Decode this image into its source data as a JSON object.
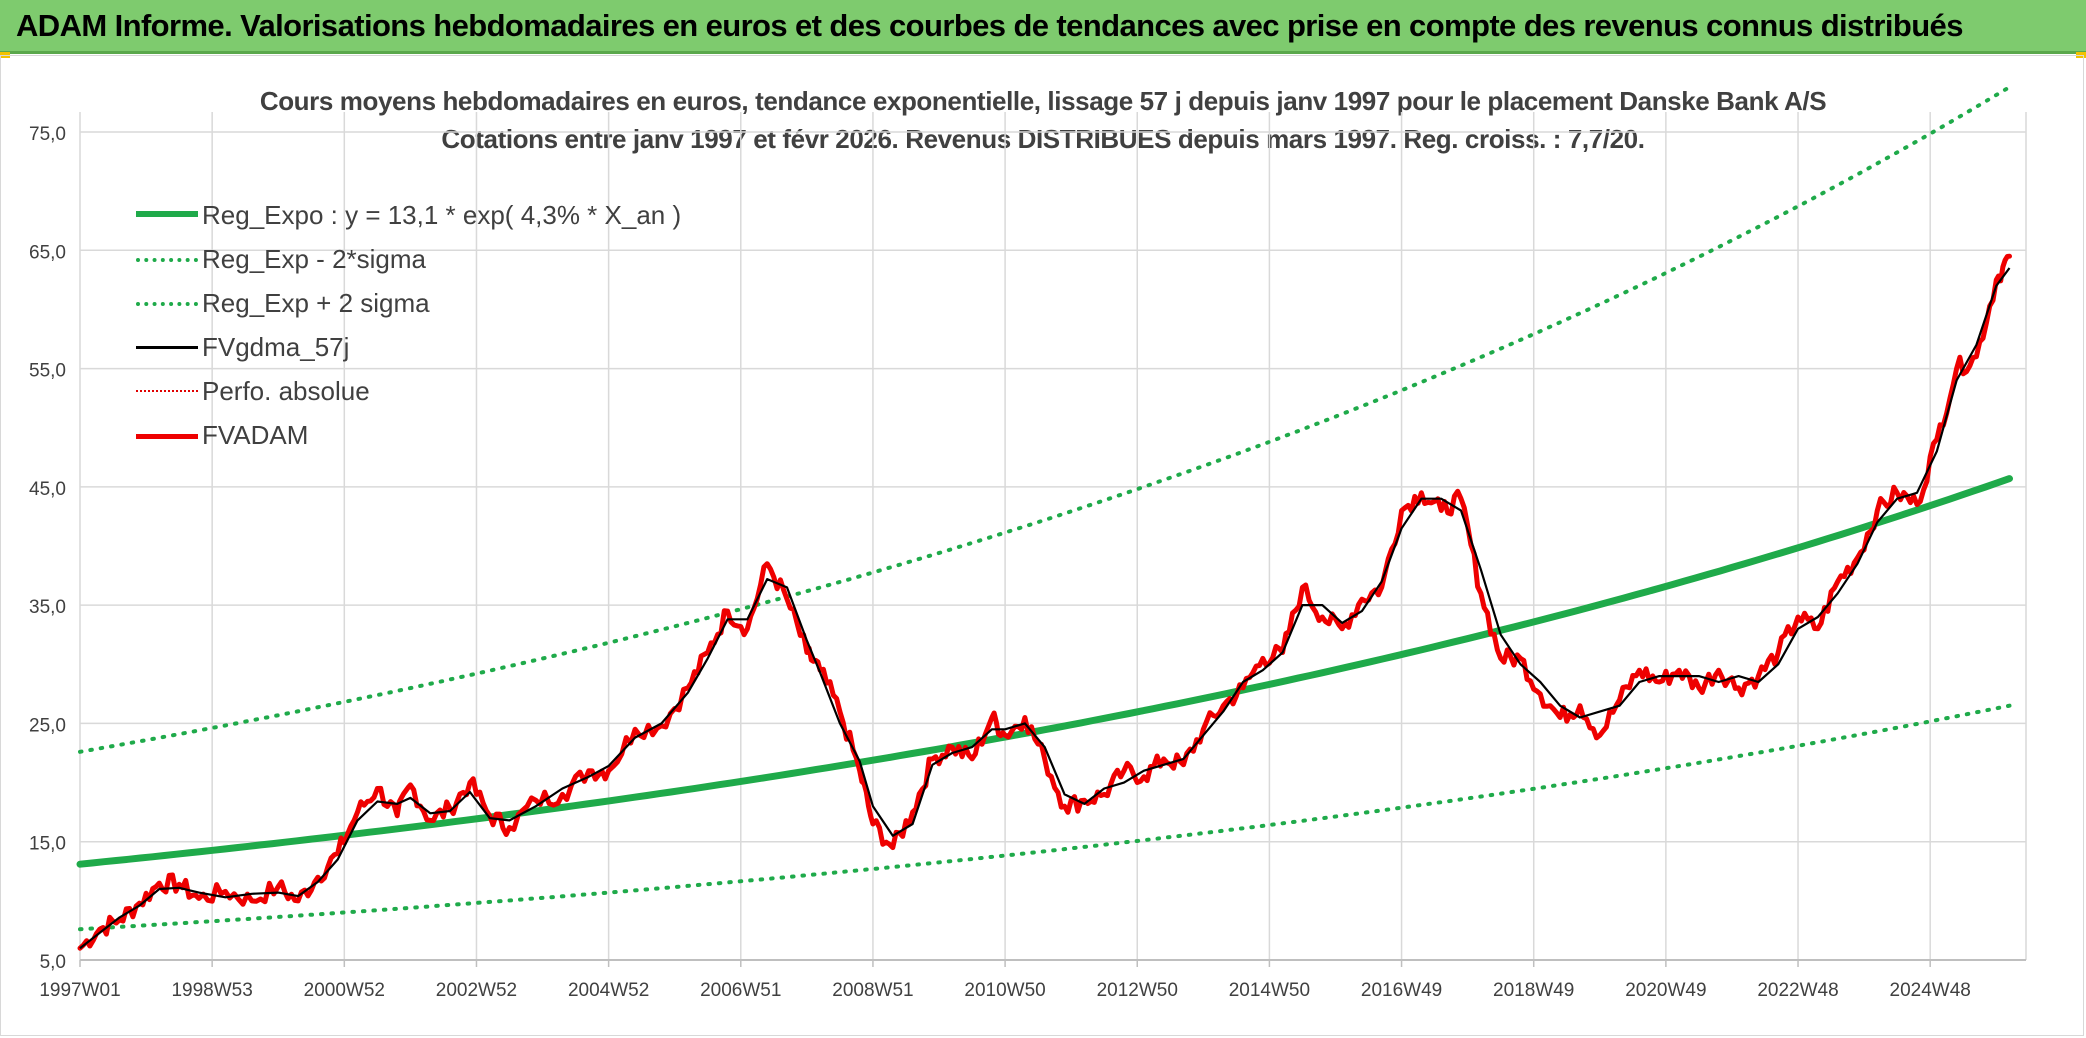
{
  "banner": {
    "title": "ADAM Informe. Valorisations hebdomadaires en euros et des courbes de tendances avec prise en compte des revenus connus distribués"
  },
  "colors": {
    "banner_bg": "#7ecb6e",
    "reg_expo": "#1faa4a",
    "band": "#1faa4a",
    "fvgdma": "#000000",
    "perfo": "#e00000",
    "fvadam": "#ee0000"
  },
  "chart_data": {
    "type": "line",
    "title": "Cours moyens hebdomadaires en euros, tendance exponentielle, lissage 57 j depuis janv 1997 pour le placement Danske Bank A/S",
    "subtitle": "Cotations entre janv 1997 et févr 2026. Revenus DISTRIBUES depuis mars 1997. Reg. croiss. : 7,7/20.",
    "xlabel": "",
    "ylabel": "",
    "ylim": [
      5,
      75
    ],
    "yticks": [
      "5,0",
      "15,0",
      "25,0",
      "35,0",
      "45,0",
      "55,0",
      "65,0",
      "75,0"
    ],
    "xlim": [
      1997.0,
      2026.2
    ],
    "xticks": [
      {
        "x": 1997.0,
        "label": "1997W01"
      },
      {
        "x": 1999.0,
        "label": "1998W53"
      },
      {
        "x": 2001.0,
        "label": "2000W52"
      },
      {
        "x": 2003.0,
        "label": "2002W52"
      },
      {
        "x": 2005.0,
        "label": "2004W52"
      },
      {
        "x": 2007.0,
        "label": "2006W51"
      },
      {
        "x": 2009.0,
        "label": "2008W51"
      },
      {
        "x": 2011.0,
        "label": "2010W50"
      },
      {
        "x": 2013.0,
        "label": "2012W50"
      },
      {
        "x": 2015.0,
        "label": "2014W50"
      },
      {
        "x": 2017.0,
        "label": "2016W49"
      },
      {
        "x": 2019.0,
        "label": "2018W49"
      },
      {
        "x": 2021.0,
        "label": "2020W49"
      },
      {
        "x": 2023.0,
        "label": "2022W48"
      },
      {
        "x": 2025.0,
        "label": "2024W48"
      }
    ],
    "grid": true,
    "legend_position": "top-left",
    "series": [
      {
        "name": "Reg_Expo : y = 13,1 * exp( 4,3% *  X_an )",
        "style": "solid-thick",
        "color": "#1faa4a",
        "x": [
          1997.0,
          2002,
          2007,
          2012,
          2017,
          2022,
          2026.2
        ],
        "y": [
          13.1,
          16.2,
          20.2,
          25.1,
          31.1,
          38.7,
          45.7
        ]
      },
      {
        "name": "Reg_Exp - 2*sigma",
        "style": "dotted",
        "color": "#1faa4a",
        "x": [
          1997.0,
          2002,
          2007,
          2012,
          2017,
          2022,
          2026.2
        ],
        "y": [
          7.6,
          9.4,
          11.6,
          14.6,
          18.0,
          22.5,
          26.5
        ]
      },
      {
        "name": "Reg_Exp + 2 sigma",
        "style": "dotted",
        "color": "#1faa4a",
        "x": [
          1997.0,
          2002,
          2007,
          2012,
          2017,
          2022,
          2026.2
        ],
        "y": [
          22.6,
          28.0,
          34.8,
          43.3,
          53.7,
          66.8,
          78.8
        ]
      },
      {
        "name": "FVgdma_57j",
        "style": "solid",
        "color": "#000000",
        "x": [
          1997.0,
          1997.3,
          1997.6,
          1997.9,
          1998.2,
          1998.5,
          1998.8,
          1999.2,
          1999.6,
          2000.0,
          2000.3,
          2000.6,
          2000.9,
          2001.2,
          2001.5,
          2001.8,
          2002.0,
          2002.3,
          2002.6,
          2002.9,
          2003.2,
          2003.5,
          2003.9,
          2004.3,
          2004.7,
          2005.0,
          2005.4,
          2005.8,
          2006.2,
          2006.5,
          2006.8,
          2007.1,
          2007.4,
          2007.7,
          2008.0,
          2008.2,
          2008.5,
          2008.8,
          2009.0,
          2009.3,
          2009.6,
          2009.9,
          2010.2,
          2010.5,
          2010.8,
          2011.0,
          2011.3,
          2011.6,
          2011.9,
          2012.2,
          2012.5,
          2012.8,
          2013.1,
          2013.4,
          2013.7,
          2014.0,
          2014.3,
          2014.6,
          2014.9,
          2015.2,
          2015.5,
          2015.8,
          2016.1,
          2016.4,
          2016.7,
          2017.0,
          2017.3,
          2017.6,
          2017.9,
          2018.2,
          2018.5,
          2018.8,
          2019.1,
          2019.4,
          2019.7,
          2020.0,
          2020.3,
          2020.6,
          2020.9,
          2021.2,
          2021.5,
          2021.8,
          2022.1,
          2022.4,
          2022.7,
          2023.0,
          2023.3,
          2023.6,
          2023.9,
          2024.2,
          2024.5,
          2024.8,
          2025.1,
          2025.4,
          2025.7,
          2026.0,
          2026.2
        ],
        "y": [
          6.0,
          7.3,
          8.6,
          9.6,
          11.0,
          11.1,
          10.7,
          10.3,
          10.6,
          10.7,
          10.4,
          11.6,
          13.5,
          16.8,
          18.4,
          18.2,
          18.7,
          17.4,
          17.6,
          19.2,
          17.0,
          16.8,
          18.0,
          19.5,
          20.5,
          21.4,
          23.8,
          25.0,
          27.6,
          30.5,
          33.8,
          33.8,
          37.2,
          36.5,
          32.0,
          29.3,
          25.0,
          21.8,
          18.0,
          15.5,
          16.5,
          21.5,
          22.5,
          23.0,
          24.5,
          24.5,
          25.0,
          23.0,
          19.0,
          18.2,
          19.5,
          20.0,
          21.0,
          21.5,
          22.0,
          24.0,
          26.0,
          28.5,
          29.5,
          31.0,
          35.0,
          35.0,
          33.5,
          34.5,
          37.0,
          41.5,
          44.0,
          44.0,
          43.0,
          38.0,
          32.5,
          30.0,
          28.5,
          26.5,
          25.5,
          26.0,
          26.5,
          28.5,
          29.0,
          29.0,
          29.0,
          28.5,
          29.0,
          28.5,
          30.0,
          33.0,
          34.0,
          36.0,
          38.5,
          42.0,
          44.0,
          44.5,
          48.0,
          54.0,
          57.0,
          62.0,
          63.5
        ]
      },
      {
        "name": "Perfo. absolue",
        "style": "dotted",
        "color": "#e00000",
        "x": [],
        "y": []
      },
      {
        "name": "FVADAM",
        "style": "solid-thick",
        "color": "#ee0000",
        "x": [
          1997.0,
          1997.3,
          1997.6,
          1997.9,
          1998.2,
          1998.5,
          1998.8,
          1999.2,
          1999.6,
          2000.0,
          2000.3,
          2000.6,
          2000.9,
          2001.2,
          2001.5,
          2001.8,
          2002.0,
          2002.3,
          2002.6,
          2002.9,
          2003.2,
          2003.5,
          2003.9,
          2004.3,
          2004.7,
          2005.0,
          2005.4,
          2005.8,
          2006.2,
          2006.5,
          2006.8,
          2007.1,
          2007.4,
          2007.7,
          2008.0,
          2008.2,
          2008.5,
          2008.8,
          2009.0,
          2009.3,
          2009.6,
          2009.9,
          2010.2,
          2010.5,
          2010.8,
          2011.0,
          2011.3,
          2011.6,
          2011.9,
          2012.2,
          2012.5,
          2012.8,
          2013.1,
          2013.4,
          2013.7,
          2014.0,
          2014.3,
          2014.6,
          2014.9,
          2015.2,
          2015.5,
          2015.8,
          2016.1,
          2016.4,
          2016.7,
          2017.0,
          2017.3,
          2017.6,
          2017.9,
          2018.2,
          2018.5,
          2018.8,
          2019.1,
          2019.4,
          2019.7,
          2020.0,
          2020.3,
          2020.6,
          2020.9,
          2021.2,
          2021.5,
          2021.8,
          2022.1,
          2022.4,
          2022.7,
          2023.0,
          2023.3,
          2023.6,
          2023.9,
          2024.2,
          2024.5,
          2024.8,
          2025.1,
          2025.4,
          2025.7,
          2026.0,
          2026.2
        ],
        "y": [
          6.0,
          7.6,
          8.4,
          9.8,
          11.5,
          11.4,
          10.2,
          10.8,
          10.0,
          11.2,
          10.0,
          12.0,
          14.0,
          17.5,
          19.5,
          17.2,
          19.8,
          16.8,
          17.8,
          20.0,
          17.2,
          16.2,
          18.5,
          19.0,
          21.0,
          21.0,
          24.5,
          24.8,
          28.0,
          31.0,
          34.5,
          33.0,
          38.5,
          35.5,
          31.0,
          29.5,
          26.0,
          21.0,
          16.5,
          14.5,
          17.5,
          22.0,
          23.0,
          22.0,
          25.5,
          24.0,
          25.5,
          22.0,
          18.0,
          18.5,
          19.0,
          21.0,
          20.5,
          22.0,
          21.5,
          24.5,
          26.5,
          28.0,
          30.5,
          31.0,
          36.5,
          34.0,
          33.0,
          35.5,
          36.5,
          43.0,
          44.5,
          43.0,
          44.0,
          36.0,
          30.5,
          30.5,
          27.5,
          25.5,
          26.5,
          24.0,
          27.0,
          29.5,
          28.5,
          29.5,
          28.0,
          29.5,
          28.0,
          29.0,
          31.0,
          34.0,
          33.0,
          37.0,
          39.0,
          43.0,
          44.5,
          43.5,
          49.0,
          55.0,
          56.0,
          62.5,
          64.5
        ]
      }
    ]
  }
}
